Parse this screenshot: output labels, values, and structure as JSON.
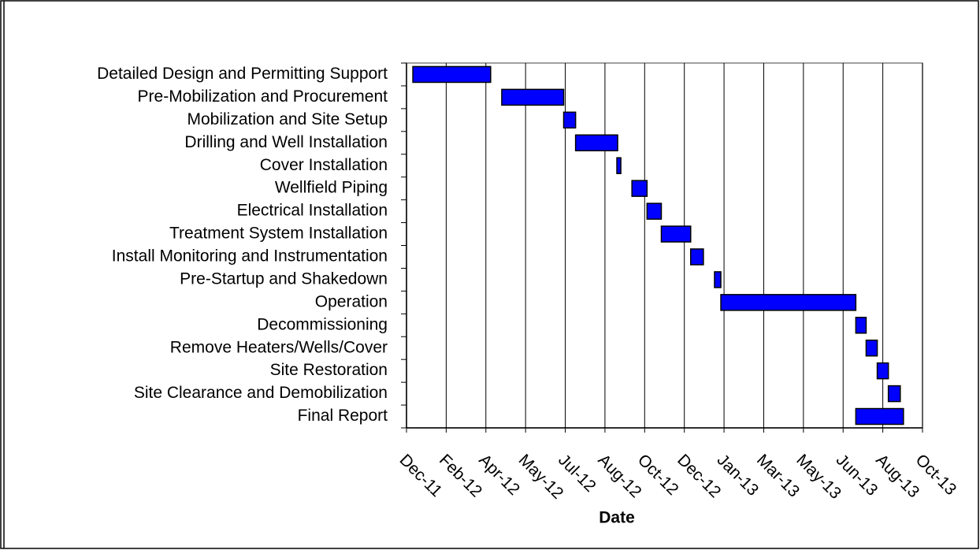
{
  "chart_data": {
    "type": "gantt",
    "x_label": "Date",
    "categories": [
      "Detailed Design and Permitting Support",
      "Pre-Mobilization and Procurement",
      "Mobilization and Site Setup",
      "Drilling and Well Installation",
      "Cover Installation",
      "Wellfield Piping",
      "Electrical Installation",
      "Treatment System Installation",
      "Install Monitoring and Instrumentation",
      "Pre-Startup and Shakedown",
      "Operation",
      "Decommissioning",
      "Remove Heaters/Wells/Cover",
      "Site Restoration",
      "Site Clearance and Demobilization",
      "Final Report"
    ],
    "start": [
      40910,
      41022,
      41100,
      41115,
      41167,
      41186,
      41205,
      41223,
      41260,
      41290,
      41298,
      41468,
      41481,
      41495,
      41509,
      41468
    ],
    "end": [
      41008,
      41100,
      41115,
      41168,
      41172,
      41205,
      41223,
      41260,
      41276,
      41298,
      41468,
      41481,
      41495,
      41509,
      41524,
      41528
    ],
    "color": "#0000ff",
    "xlim": [
      40902,
      41552
    ],
    "xticks": [
      {
        "value": 40902,
        "label": "Dec-11"
      },
      {
        "value": 40952,
        "label": "Feb-12"
      },
      {
        "value": 41002,
        "label": "Apr-12"
      },
      {
        "value": 41052,
        "label": "May-12"
      },
      {
        "value": 41102,
        "label": "Jul-12"
      },
      {
        "value": 41152,
        "label": "Aug-12"
      },
      {
        "value": 41202,
        "label": "Oct-12"
      },
      {
        "value": 41252,
        "label": "Dec-12"
      },
      {
        "value": 41302,
        "label": "Jan-13"
      },
      {
        "value": 41352,
        "label": "Mar-13"
      },
      {
        "value": 41402,
        "label": "May-13"
      },
      {
        "value": 41452,
        "label": "Jun-13"
      },
      {
        "value": 41502,
        "label": "Aug-13"
      },
      {
        "value": 41552,
        "label": "Oct-13"
      }
    ],
    "grid": true
  }
}
